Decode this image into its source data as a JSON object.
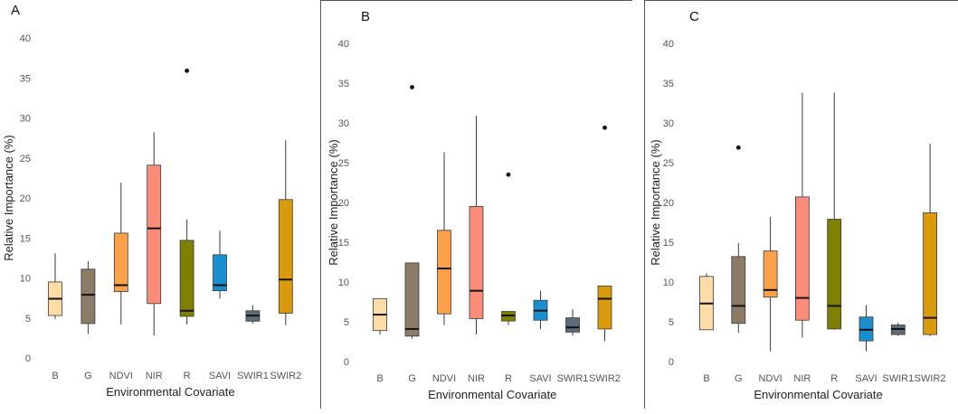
{
  "chart_data": [
    {
      "type": "boxplot",
      "panel_label": "A",
      "xlabel": "Environmental Covariate",
      "ylabel": "Relative Importance (%)",
      "ylim": [
        0,
        40
      ],
      "yticks": [
        "0",
        "5",
        "10",
        "15",
        "20",
        "25",
        "30",
        "35",
        "40"
      ],
      "categories": [
        "B",
        "G",
        "NDVI",
        "NIR",
        "R",
        "SAVI",
        "SWIR1",
        "SWIR2"
      ],
      "colors": [
        "#FDDCA5",
        "#8C7B66",
        "#FDA04A",
        "#FA8C78",
        "#808000",
        "#1A8FD0",
        "#5C6B7A",
        "#D99A0B"
      ],
      "boxes": [
        {
          "min": 4.9,
          "q1": 5.3,
          "median": 7.4,
          "q3": 9.5,
          "max": 13.1,
          "outliers": []
        },
        {
          "min": 3.0,
          "q1": 4.3,
          "median": 7.9,
          "q3": 11.1,
          "max": 12.1,
          "outliers": []
        },
        {
          "min": 4.2,
          "q1": 8.3,
          "median": 9.1,
          "q3": 15.6,
          "max": 21.9,
          "outliers": []
        },
        {
          "min": 2.8,
          "q1": 6.8,
          "median": 16.2,
          "q3": 24.1,
          "max": 28.2,
          "outliers": []
        },
        {
          "min": 4.2,
          "q1": 5.2,
          "median": 5.9,
          "q3": 14.7,
          "max": 17.3,
          "outliers": [
            35.9
          ]
        },
        {
          "min": 7.4,
          "q1": 8.4,
          "median": 9.1,
          "q3": 12.9,
          "max": 15.9,
          "outliers": []
        },
        {
          "min": 4.3,
          "q1": 4.6,
          "median": 5.3,
          "q3": 5.9,
          "max": 6.6,
          "outliers": []
        },
        {
          "min": 4.1,
          "q1": 5.6,
          "median": 9.8,
          "q3": 19.8,
          "max": 27.2,
          "outliers": []
        }
      ]
    },
    {
      "type": "boxplot",
      "panel_label": "B",
      "xlabel": "Environmental Covariate",
      "ylabel": "Relative Importance (%)",
      "ylim": [
        0,
        40
      ],
      "yticks": [
        "0",
        "5",
        "10",
        "15",
        "20",
        "25",
        "30",
        "35",
        "40"
      ],
      "categories": [
        "B",
        "G",
        "NDVI",
        "NIR",
        "R",
        "SAVI",
        "SWIR1",
        "SWIR2"
      ],
      "colors": [
        "#FDDCA5",
        "#8C7B66",
        "#FDA04A",
        "#FA8C78",
        "#808000",
        "#1A8FD0",
        "#5C6B7A",
        "#D99A0B"
      ],
      "boxes": [
        {
          "min": 3.4,
          "q1": 3.9,
          "median": 5.9,
          "q3": 7.9,
          "max": 7.9,
          "outliers": []
        },
        {
          "min": 2.9,
          "q1": 3.2,
          "median": 4.1,
          "q3": 12.4,
          "max": 12.4,
          "outliers": [
            34.5
          ]
        },
        {
          "min": 4.6,
          "q1": 6.0,
          "median": 11.7,
          "q3": 16.5,
          "max": 26.3,
          "outliers": []
        },
        {
          "min": 3.4,
          "q1": 5.4,
          "median": 8.9,
          "q3": 19.5,
          "max": 30.9,
          "outliers": []
        },
        {
          "min": 4.6,
          "q1": 5.1,
          "median": 5.8,
          "q3": 6.3,
          "max": 6.3,
          "outliers": [
            23.5
          ]
        },
        {
          "min": 4.1,
          "q1": 5.2,
          "median": 6.4,
          "q3": 7.7,
          "max": 8.9,
          "outliers": []
        },
        {
          "min": 3.3,
          "q1": 3.7,
          "median": 4.3,
          "q3": 5.5,
          "max": 6.6,
          "outliers": []
        },
        {
          "min": 2.6,
          "q1": 4.1,
          "median": 7.9,
          "q3": 9.5,
          "max": 9.5,
          "outliers": [
            29.4
          ]
        }
      ]
    },
    {
      "type": "boxplot",
      "panel_label": "C",
      "xlabel": "Environmental Covariate",
      "ylabel": "Relative Importance (%)",
      "ylim": [
        0,
        40
      ],
      "yticks": [
        "0",
        "5",
        "10",
        "15",
        "20",
        "25",
        "30",
        "35",
        "40"
      ],
      "categories": [
        "B",
        "G",
        "NDVI",
        "NIR",
        "R",
        "SAVI",
        "SWIR1",
        "SWIR2"
      ],
      "colors": [
        "#FDDCA5",
        "#8C7B66",
        "#FDA04A",
        "#FA8C78",
        "#808000",
        "#1A8FD0",
        "#5C6B7A",
        "#D99A0B"
      ],
      "boxes": [
        {
          "min": 4.0,
          "q1": 4.0,
          "median": 7.3,
          "q3": 10.7,
          "max": 11.1,
          "outliers": []
        },
        {
          "min": 3.6,
          "q1": 4.8,
          "median": 7.0,
          "q3": 13.2,
          "max": 14.9,
          "outliers": [
            26.9
          ]
        },
        {
          "min": 1.3,
          "q1": 8.1,
          "median": 9.0,
          "q3": 13.9,
          "max": 18.2,
          "outliers": []
        },
        {
          "min": 3.0,
          "q1": 5.2,
          "median": 8.0,
          "q3": 20.7,
          "max": 33.8,
          "outliers": []
        },
        {
          "min": 4.0,
          "q1": 4.1,
          "median": 7.0,
          "q3": 17.9,
          "max": 33.8,
          "outliers": []
        },
        {
          "min": 1.3,
          "q1": 2.6,
          "median": 4.0,
          "q3": 5.6,
          "max": 7.1,
          "outliers": []
        },
        {
          "min": 3.2,
          "q1": 3.4,
          "median": 4.1,
          "q3": 4.6,
          "max": 4.9,
          "outliers": []
        },
        {
          "min": 3.2,
          "q1": 3.4,
          "median": 5.5,
          "q3": 18.7,
          "max": 27.4,
          "outliers": []
        }
      ]
    }
  ]
}
